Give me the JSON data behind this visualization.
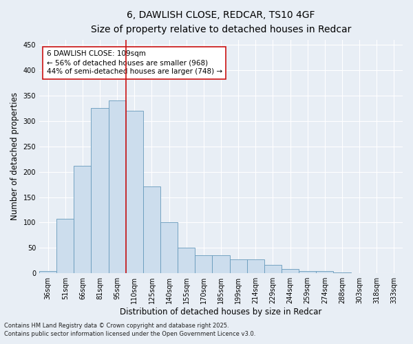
{
  "title1": "6, DAWLISH CLOSE, REDCAR, TS10 4GF",
  "title2": "Size of property relative to detached houses in Redcar",
  "xlabel": "Distribution of detached houses by size in Redcar",
  "ylabel": "Number of detached properties",
  "categories": [
    "36sqm",
    "51sqm",
    "66sqm",
    "81sqm",
    "95sqm",
    "110sqm",
    "125sqm",
    "140sqm",
    "155sqm",
    "170sqm",
    "185sqm",
    "199sqm",
    "214sqm",
    "229sqm",
    "244sqm",
    "259sqm",
    "274sqm",
    "288sqm",
    "303sqm",
    "318sqm",
    "333sqm"
  ],
  "values": [
    5,
    107,
    211,
    325,
    340,
    320,
    171,
    100,
    50,
    35,
    35,
    28,
    28,
    16,
    8,
    5,
    5,
    1,
    0,
    0,
    0
  ],
  "bar_color": "#ccdded",
  "bar_edge_color": "#6699bb",
  "vertical_line_color": "#cc1111",
  "annotation_text": "6 DAWLISH CLOSE: 109sqm\n← 56% of detached houses are smaller (968)\n44% of semi-detached houses are larger (748) →",
  "annotation_box_facecolor": "#ffffff",
  "annotation_box_edgecolor": "#cc1111",
  "ylim": [
    0,
    460
  ],
  "yticks": [
    0,
    50,
    100,
    150,
    200,
    250,
    300,
    350,
    400,
    450
  ],
  "footer1": "Contains HM Land Registry data © Crown copyright and database right 2025.",
  "footer2": "Contains public sector information licensed under the Open Government Licence v3.0.",
  "background_color": "#e8eef5",
  "plot_background_color": "#e8eef5",
  "grid_color": "#ffffff",
  "title1_fontsize": 10,
  "title2_fontsize": 9,
  "axis_label_fontsize": 8.5,
  "tick_fontsize": 7,
  "annotation_fontsize": 7.5,
  "footer_fontsize": 6
}
